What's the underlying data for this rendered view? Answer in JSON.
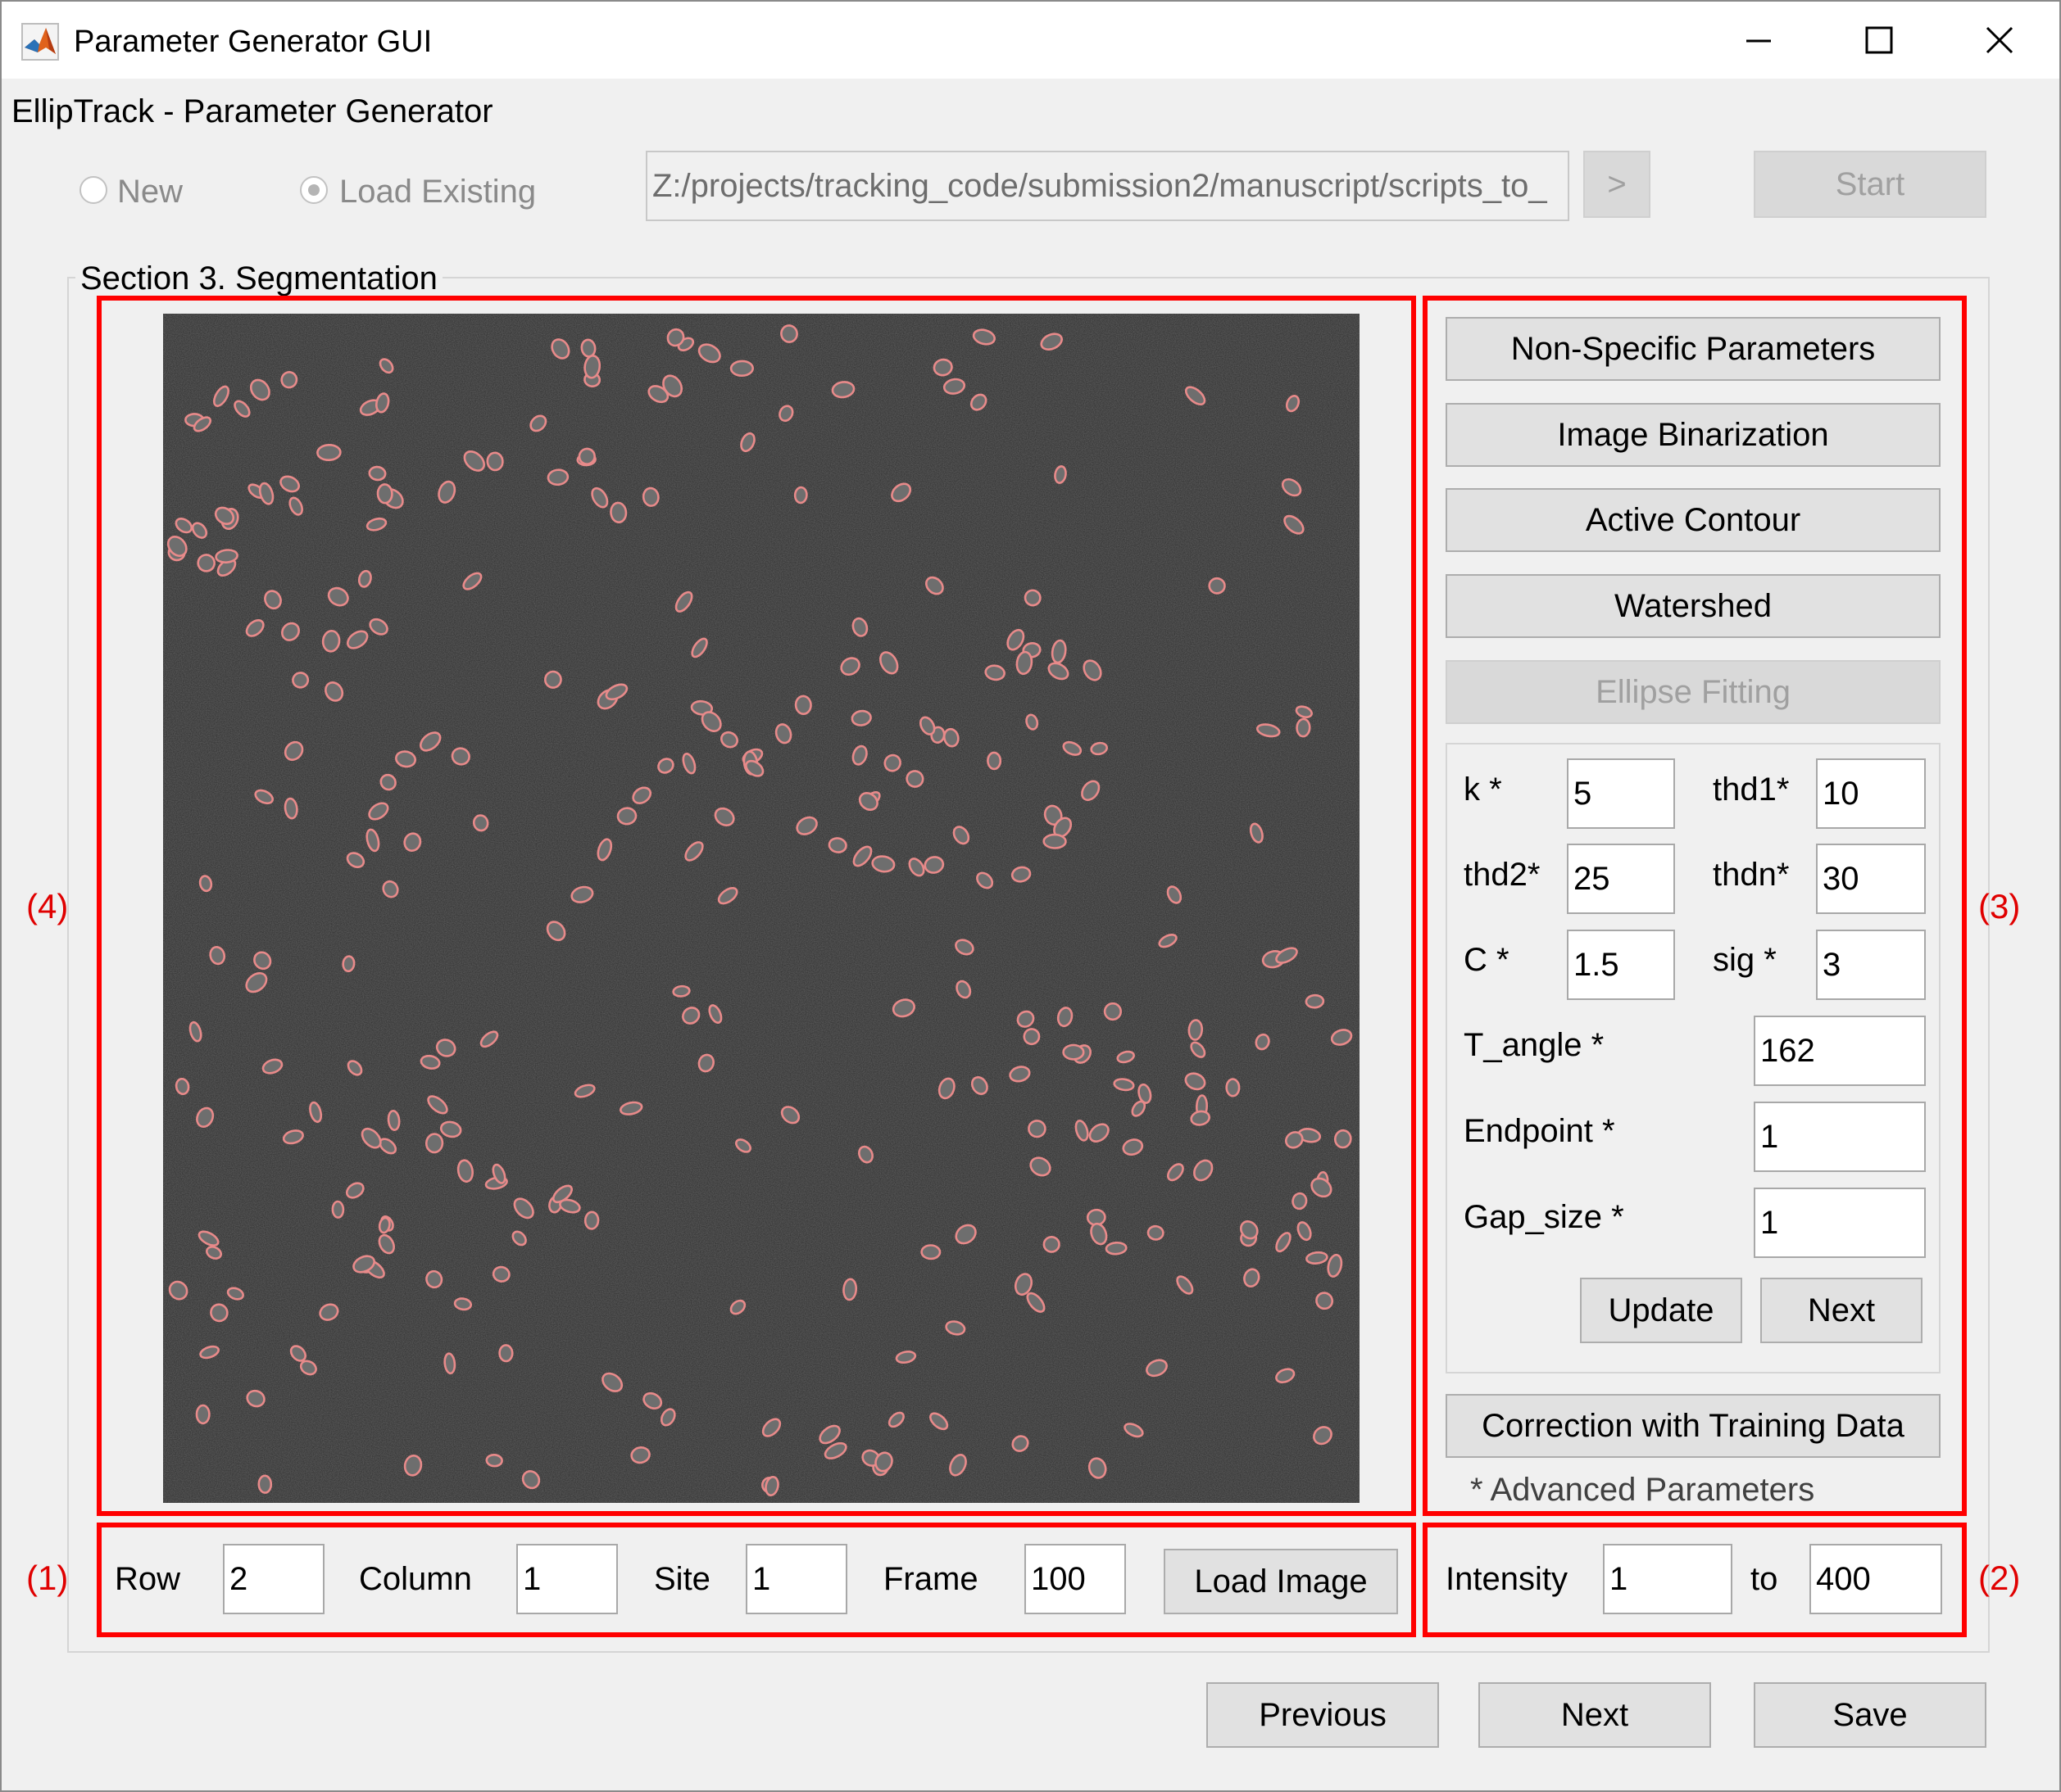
{
  "window": {
    "title": "Parameter Generator GUI",
    "app_icon": "matlab-logo-icon",
    "controls": [
      "minimize-icon",
      "maximize-icon",
      "close-icon"
    ]
  },
  "header": {
    "title": "EllipTrack - Parameter Generator",
    "radio_new": "New",
    "radio_load": "Load Existing",
    "path_value": "Z:/projects/tracking_code/submission2/manuscript/scripts_to_",
    "browse_label": ">",
    "start_label": "Start"
  },
  "section": {
    "title": "Section 3. Segmentation"
  },
  "panel_labels": {
    "p1": "(1)",
    "p2": "(2)",
    "p3": "(3)",
    "p4": "(4)"
  },
  "right_panel": {
    "buttons": {
      "non_specific": "Non-Specific Parameters",
      "binarization": "Image Binarization",
      "active_contour": "Active Contour",
      "watershed": "Watershed",
      "ellipse_fitting": "Ellipse Fitting",
      "correction": "Correction with Training Data"
    },
    "params": {
      "k_label": "k *",
      "k_value": "5",
      "thd1_label": "thd1*",
      "thd1_value": "10",
      "thd2_label": "thd2*",
      "thd2_value": "25",
      "thdn_label": "thdn*",
      "thdn_value": "30",
      "c_label": "C *",
      "c_value": "1.5",
      "sig_label": "sig *",
      "sig_value": "3",
      "tangle_label": "T_angle *",
      "tangle_value": "162",
      "endpoint_label": "Endpoint *",
      "endpoint_value": "1",
      "gap_label": "Gap_size *",
      "gap_value": "1"
    },
    "update_label": "Update",
    "next_label": "Next",
    "footnote": "* Advanced Parameters"
  },
  "image_controls": {
    "row_label": "Row",
    "row_value": "2",
    "column_label": "Column",
    "column_value": "1",
    "site_label": "Site",
    "site_value": "1",
    "frame_label": "Frame",
    "frame_value": "100",
    "load_label": "Load Image"
  },
  "intensity": {
    "label": "Intensity",
    "from_value": "1",
    "to_label": "to",
    "to_value": "400"
  },
  "footer": {
    "previous_label": "Previous",
    "next_label": "Next",
    "save_label": "Save"
  },
  "colors": {
    "window_bg": "#f0f0f0",
    "annotation_red": "#ff0000",
    "image_bg": "#2c2c2c",
    "ellipse_outline": "#e88a8a"
  }
}
